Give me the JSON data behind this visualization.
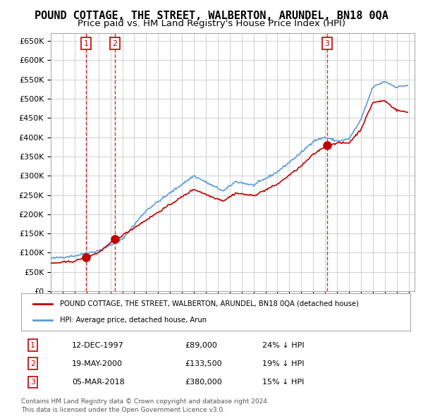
{
  "title": "POUND COTTAGE, THE STREET, WALBERTON, ARUNDEL, BN18 0QA",
  "subtitle": "Price paid vs. HM Land Registry's House Price Index (HPI)",
  "ylabel": "",
  "ylim": [
    0,
    670000
  ],
  "yticks": [
    0,
    50000,
    100000,
    150000,
    200000,
    250000,
    300000,
    350000,
    400000,
    450000,
    500000,
    550000,
    600000,
    650000
  ],
  "xlim_start": 1995.0,
  "xlim_end": 2025.5,
  "hpi_color": "#5b9bd5",
  "price_color": "#c00000",
  "transactions": [
    {
      "num": 1,
      "date": "12-DEC-1997",
      "price": 89000,
      "pct": "24% ↓ HPI",
      "year": 1997.95
    },
    {
      "num": 2,
      "date": "19-MAY-2000",
      "price": 133500,
      "pct": "19% ↓ HPI",
      "year": 2000.38
    },
    {
      "num": 3,
      "date": "05-MAR-2018",
      "price": 380000,
      "pct": "15% ↓ HPI",
      "year": 2018.17
    }
  ],
  "legend_property_label": "POUND COTTAGE, THE STREET, WALBERTON, ARUNDEL, BN18 0QA (detached house)",
  "legend_hpi_label": "HPI: Average price, detached house, Arun",
  "footnote1": "Contains HM Land Registry data © Crown copyright and database right 2024.",
  "footnote2": "This data is licensed under the Open Government Licence v3.0.",
  "grid_color": "#d0d0d0",
  "background_color": "#ffffff",
  "title_fontsize": 11,
  "subtitle_fontsize": 9.5
}
